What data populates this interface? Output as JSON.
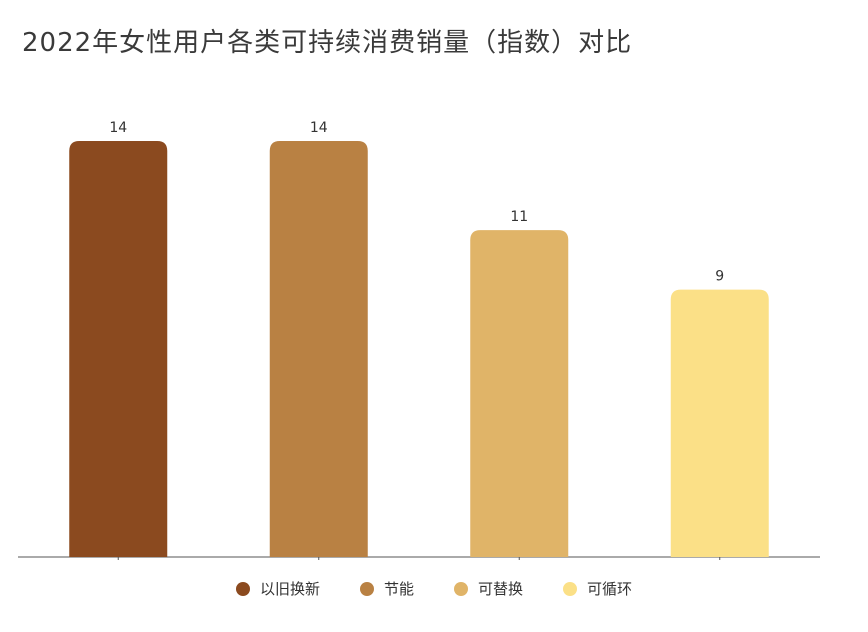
{
  "title": "2022年女性用户各类可持续消费销量（指数）对比",
  "chart_data": {
    "type": "bar",
    "title": "2022年女性用户各类可持续消费销量（指数）对比",
    "categories": [
      "以旧换新",
      "节能",
      "可替换",
      "可循环"
    ],
    "values": [
      14,
      14,
      11,
      9
    ],
    "colors": [
      "#8b4a1f",
      "#b98143",
      "#e0b468",
      "#fbe087"
    ],
    "ylim": [
      0,
      14
    ],
    "grid": false,
    "legend": "bottom",
    "data_labels": true
  }
}
